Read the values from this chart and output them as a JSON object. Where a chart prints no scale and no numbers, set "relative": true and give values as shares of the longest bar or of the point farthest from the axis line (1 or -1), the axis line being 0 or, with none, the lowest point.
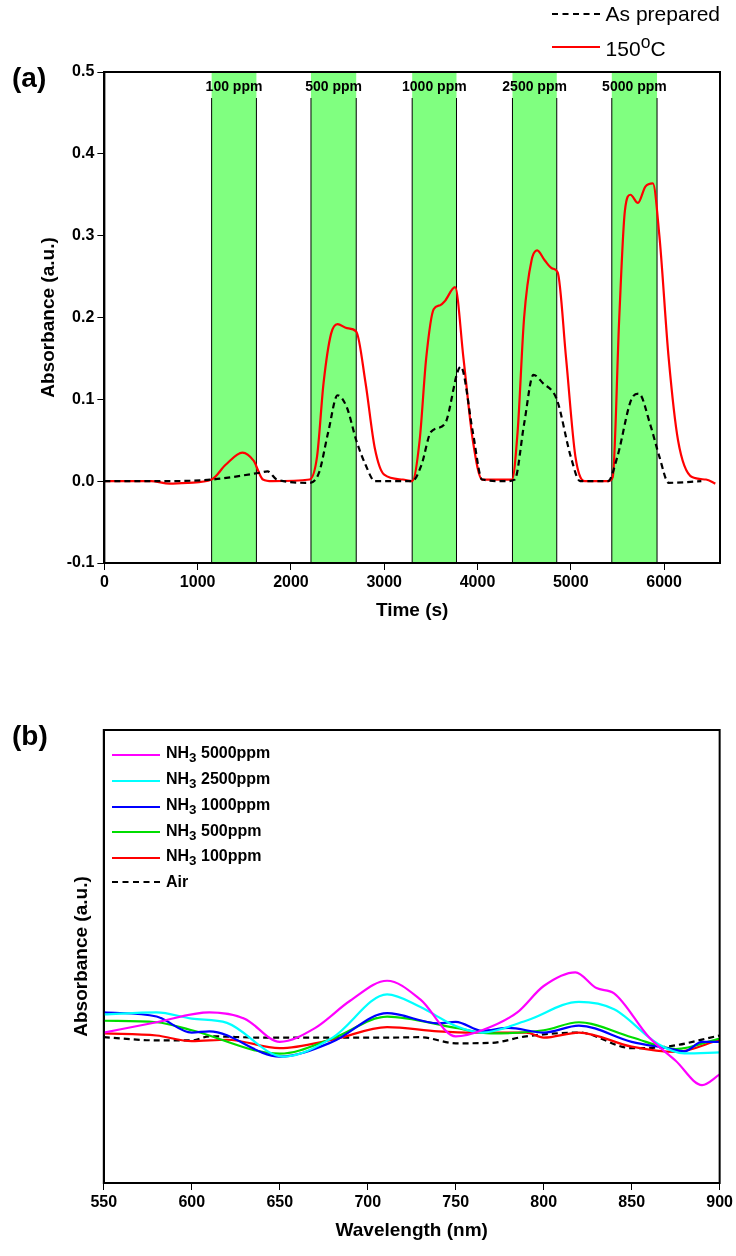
{
  "chart_data": [
    {
      "type": "line",
      "title": "(a)",
      "xlabel": "Time (s)",
      "ylabel": "Absorbance (a.u.)",
      "xlim": [
        0,
        6600
      ],
      "xticks": [
        0,
        1000,
        2000,
        3000,
        4000,
        5000,
        6000
      ],
      "ylim": [
        -0.1,
        0.5
      ],
      "yticks": [
        {
          "value": -0.1,
          "label": "-0.1"
        },
        {
          "value": 0,
          "label": "0.0"
        },
        {
          "value": 0.1,
          "label": "0.1"
        },
        {
          "value": 0.2,
          "label": "0.2"
        },
        {
          "value": 0.3,
          "label": "0.3"
        },
        {
          "value": 0.4,
          "label": "0.4"
        },
        {
          "value": 0.5,
          "label": "0.5"
        }
      ],
      "legend": "top right",
      "marker": "none",
      "grid": false,
      "bands": [
        {
          "axis": "x",
          "from": 1150,
          "to": 1630,
          "label": "100 ppm",
          "color": "#80ff80"
        },
        {
          "axis": "x",
          "from": 2215,
          "to": 2700,
          "label": "500 ppm",
          "color": "#80ff80"
        },
        {
          "axis": "x",
          "from": 3300,
          "to": 3775,
          "label": "1000 ppm",
          "color": "#80ff80"
        },
        {
          "axis": "x",
          "from": 4375,
          "to": 4850,
          "label": "2500 ppm",
          "color": "#80ff80"
        },
        {
          "axis": "x",
          "from": 5440,
          "to": 5925,
          "label": "5000 ppm",
          "color": "#80ff80"
        }
      ],
      "series": [
        {
          "name": "As prepared",
          "color": "#000000",
          "line_style": "dashed",
          "x": [
            0,
            600,
            1150,
            1650,
            1750,
            1850,
            2200,
            2300,
            2400,
            2500,
            2600,
            2700,
            2800,
            2900,
            3300,
            3400,
            3500,
            3650,
            3820,
            3950,
            4050,
            4300,
            4400,
            4500,
            4600,
            4700,
            4850,
            5000,
            5100,
            5400,
            5500,
            5650,
            5730,
            5850,
            5950,
            6050,
            6400
          ],
          "values": [
            0,
            0,
            0.002,
            0.01,
            0.012,
            0.002,
            -0.002,
            0.01,
            0.06,
            0.105,
            0.09,
            0.05,
            0.02,
            0,
            0,
            0.02,
            0.06,
            0.07,
            0.14,
            0.06,
            0.002,
            0,
            0.002,
            0.07,
            0.13,
            0.12,
            0.1,
            0.03,
            0,
            0,
            0.03,
            0.1,
            0.107,
            0.07,
            0.03,
            -0.002,
            0
          ]
        },
        {
          "name": "150$^{o}$C",
          "color": "#ff0000",
          "line_style": "solid",
          "x": [
            0,
            500,
            700,
            900,
            1150,
            1300,
            1480,
            1600,
            1700,
            1800,
            2200,
            2280,
            2350,
            2430,
            2500,
            2600,
            2700,
            2800,
            2900,
            3000,
            3200,
            3300,
            3380,
            3450,
            3530,
            3600,
            3650,
            3760,
            3850,
            3950,
            4050,
            4150,
            4370,
            4430,
            4500,
            4580,
            4640,
            4720,
            4800,
            4860,
            4950,
            5050,
            5150,
            5400,
            5450,
            5520,
            5580,
            5640,
            5720,
            5800,
            5880,
            5950,
            6050,
            6150,
            6300,
            6450,
            6550
          ],
          "values": [
            0,
            0,
            -0.003,
            -0.002,
            0.002,
            0.02,
            0.035,
            0.025,
            0.002,
            0,
            0.002,
            0.03,
            0.12,
            0.18,
            0.192,
            0.187,
            0.183,
            0.12,
            0.04,
            0.008,
            0.002,
            0,
            0.05,
            0.15,
            0.21,
            0.215,
            0.22,
            0.237,
            0.15,
            0.05,
            0.002,
            0.002,
            0.002,
            0.06,
            0.2,
            0.27,
            0.282,
            0.27,
            0.26,
            0.255,
            0.15,
            0.03,
            0,
            0,
            0.005,
            0.2,
            0.33,
            0.35,
            0.34,
            0.36,
            0.364,
            0.3,
            0.15,
            0.05,
            0.005,
            0.002,
            -0.003
          ]
        }
      ]
    },
    {
      "type": "line",
      "title": "(b)",
      "xlabel": "Wavelength (nm)",
      "ylabel": "Absorbance (a.u.)",
      "xlim": [
        550,
        900
      ],
      "xticks": [
        550,
        600,
        650,
        700,
        750,
        800,
        850,
        900
      ],
      "relative": true,
      "legend": "top left",
      "marker": "none",
      "grid": false,
      "series": [
        {
          "name": "NH$_{3}$ 5000ppm",
          "color": "#ff00ff",
          "line_style": "solid",
          "x": [
            550,
            580,
            610,
            630,
            650,
            670,
            690,
            711,
            730,
            750,
            765,
            785,
            800,
            818,
            830,
            840,
            860,
            875,
            890,
            900
          ],
          "values": [
            0.714,
            0.763,
            0.81,
            0.78,
            0.67,
            0.735,
            0.865,
            0.96,
            0.87,
            0.696,
            0.725,
            0.81,
            0.935,
            1.0,
            0.925,
            0.9,
            0.69,
            0.58,
            0.465,
            0.515
          ]
        },
        {
          "name": "NH$_{3}$ 2500ppm",
          "color": "#00ffff",
          "line_style": "solid",
          "x": [
            550,
            580,
            600,
            620,
            652,
            680,
            711,
            730,
            750,
            765,
            790,
            820,
            840,
            865,
            880,
            900
          ],
          "values": [
            0.8,
            0.81,
            0.78,
            0.76,
            0.6,
            0.69,
            0.895,
            0.835,
            0.745,
            0.714,
            0.77,
            0.86,
            0.825,
            0.66,
            0.615,
            0.62
          ]
        },
        {
          "name": "NH$_{3}$ 1000ppm",
          "color": "#0000ff",
          "line_style": "solid",
          "x": [
            550,
            580,
            600,
            610,
            650,
            680,
            711,
            740,
            750,
            765,
            780,
            800,
            820,
            850,
            870,
            880,
            890,
            900
          ],
          "values": [
            0.81,
            0.79,
            0.714,
            0.72,
            0.6,
            0.67,
            0.806,
            0.758,
            0.765,
            0.722,
            0.736,
            0.714,
            0.747,
            0.67,
            0.64,
            0.625,
            0.67,
            0.67
          ]
        },
        {
          "name": "NH$_{3}$ 500ppm",
          "color": "#00dd00",
          "line_style": "solid",
          "x": [
            550,
            580,
            600,
            650,
            680,
            711,
            750,
            770,
            800,
            820,
            850,
            875,
            900
          ],
          "values": [
            0.77,
            0.763,
            0.725,
            0.614,
            0.686,
            0.79,
            0.736,
            0.71,
            0.725,
            0.763,
            0.692,
            0.636,
            0.686
          ]
        },
        {
          "name": "NH$_{3}$ 100ppm",
          "color": "#ff0000",
          "line_style": "solid",
          "x": [
            550,
            580,
            600,
            620,
            650,
            680,
            711,
            740,
            760,
            790,
            800,
            820,
            850,
            875,
            900
          ],
          "values": [
            0.71,
            0.7,
            0.673,
            0.68,
            0.64,
            0.68,
            0.74,
            0.72,
            0.714,
            0.714,
            0.69,
            0.714,
            0.647,
            0.622,
            0.68
          ]
        },
        {
          "name": "Air",
          "color": "#000000",
          "line_style": "dashed",
          "x": [
            550,
            580,
            600,
            610,
            640,
            660,
            690,
            711,
            730,
            750,
            770,
            790,
            820,
            850,
            870,
            900
          ],
          "values": [
            0.692,
            0.677,
            0.677,
            0.696,
            0.69,
            0.69,
            0.69,
            0.69,
            0.692,
            0.663,
            0.665,
            0.696,
            0.714,
            0.64,
            0.647,
            0.7
          ]
        }
      ]
    }
  ]
}
